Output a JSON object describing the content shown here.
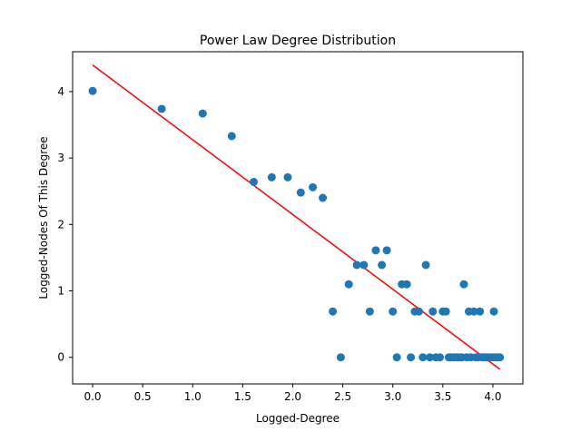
{
  "chart_data": {
    "type": "scatter",
    "title": "Power Law Degree Distribution",
    "xlabel": "Logged-Degree",
    "ylabel": "Logged-Nodes Of This Degree",
    "xlim": [
      -0.2,
      4.3
    ],
    "ylim": [
      -0.4,
      4.6
    ],
    "grid": false,
    "x_ticks": [
      0.0,
      0.5,
      1.0,
      1.5,
      2.0,
      2.5,
      3.0,
      3.5,
      4.0
    ],
    "x_tick_labels": [
      "0.0",
      "0.5",
      "1.0",
      "1.5",
      "2.0",
      "2.5",
      "3.0",
      "3.5",
      "4.0"
    ],
    "y_ticks": [
      0,
      1,
      2,
      3,
      4
    ],
    "y_tick_labels": [
      "0",
      "1",
      "2",
      "3",
      "4"
    ],
    "point_color": "#1f77b4",
    "line_color": "#ff0000",
    "points": [
      [
        0.0,
        4.01
      ],
      [
        0.69,
        3.74
      ],
      [
        1.1,
        3.67
      ],
      [
        1.39,
        3.33
      ],
      [
        1.61,
        2.64
      ],
      [
        1.79,
        2.71
      ],
      [
        1.95,
        2.71
      ],
      [
        2.08,
        2.48
      ],
      [
        2.2,
        2.56
      ],
      [
        2.3,
        2.4
      ],
      [
        2.4,
        0.69
      ],
      [
        2.48,
        0.0
      ],
      [
        2.56,
        1.1
      ],
      [
        2.64,
        1.39
      ],
      [
        2.71,
        1.39
      ],
      [
        2.77,
        0.69
      ],
      [
        2.83,
        1.61
      ],
      [
        2.89,
        1.39
      ],
      [
        2.94,
        1.61
      ],
      [
        3.0,
        0.69
      ],
      [
        3.04,
        0.0
      ],
      [
        3.09,
        1.1
      ],
      [
        3.14,
        1.1
      ],
      [
        3.18,
        0.0
      ],
      [
        3.22,
        0.69
      ],
      [
        3.26,
        0.69
      ],
      [
        3.3,
        0.0
      ],
      [
        3.33,
        1.39
      ],
      [
        3.37,
        0.0
      ],
      [
        3.4,
        0.69
      ],
      [
        3.43,
        0.0
      ],
      [
        3.47,
        0.0
      ],
      [
        3.5,
        0.69
      ],
      [
        3.53,
        0.69
      ],
      [
        3.56,
        0.0
      ],
      [
        3.58,
        0.0
      ],
      [
        3.61,
        0.0
      ],
      [
        3.64,
        0.0
      ],
      [
        3.66,
        0.0
      ],
      [
        3.69,
        0.0
      ],
      [
        3.71,
        1.1
      ],
      [
        3.74,
        0.0
      ],
      [
        3.76,
        0.69
      ],
      [
        3.78,
        0.0
      ],
      [
        3.81,
        0.69
      ],
      [
        3.83,
        0.0
      ],
      [
        3.85,
        0.0
      ],
      [
        3.87,
        0.69
      ],
      [
        3.89,
        0.0
      ],
      [
        3.91,
        0.0
      ],
      [
        3.93,
        0.0
      ],
      [
        3.95,
        0.0
      ],
      [
        3.97,
        0.0
      ],
      [
        4.0,
        0.0
      ],
      [
        4.01,
        0.69
      ],
      [
        4.03,
        0.0
      ],
      [
        4.05,
        0.0
      ],
      [
        4.07,
        0.0
      ]
    ],
    "fit_line": {
      "x": [
        0.0,
        4.07
      ],
      "y": [
        4.4,
        -0.18
      ]
    }
  }
}
